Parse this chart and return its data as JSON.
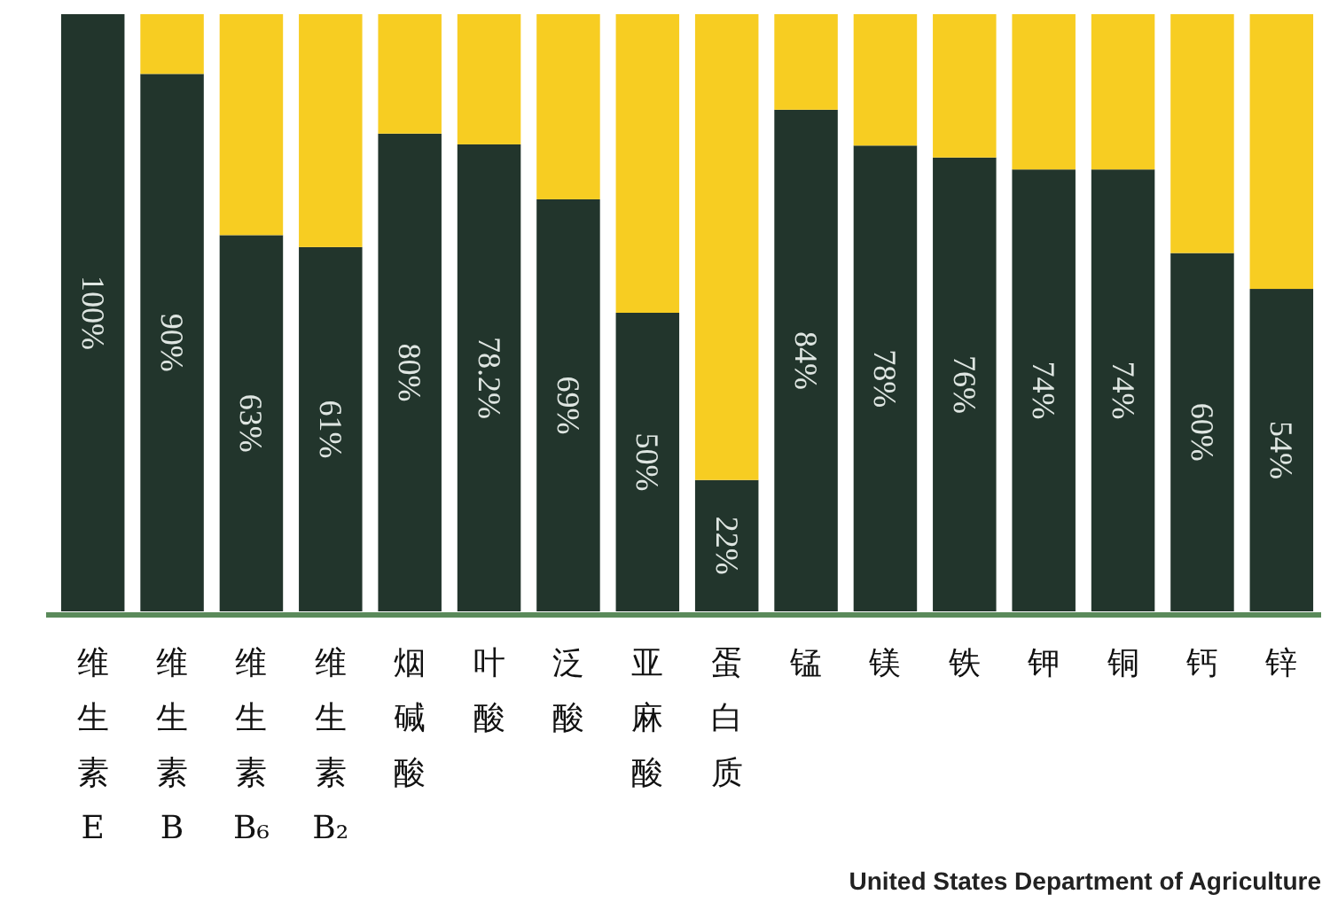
{
  "chart_data": {
    "type": "bar",
    "stacked": true,
    "categories": [
      "维生素E",
      "维生素B",
      "维生素B₆",
      "维生素B₂",
      "烟碱酸",
      "叶酸",
      "泛酸",
      "亚麻酸",
      "蛋白质",
      "锰",
      "镁",
      "铁",
      "钾",
      "铜",
      "钙",
      "锌"
    ],
    "series": [
      {
        "color": "#22352c",
        "values": [
          100,
          90,
          63,
          61,
          80,
          78.2,
          69,
          50,
          22,
          84,
          78,
          76,
          74,
          74,
          60,
          54
        ],
        "value_labels": [
          "100%",
          "90%",
          "63%",
          "61%",
          "80%",
          "78.2%",
          "69%",
          "50%",
          "22%",
          "84%",
          "78%",
          "76%",
          "74%",
          "74%",
          "60%",
          "54%"
        ]
      },
      {
        "color": "#f7cd22",
        "values": [
          0,
          10,
          37,
          39,
          20,
          21.8,
          31,
          50,
          78,
          16,
          22,
          24,
          26,
          26,
          40,
          46
        ]
      }
    ],
    "annotations": [
      "United States Department of Agriculture"
    ]
  }
}
